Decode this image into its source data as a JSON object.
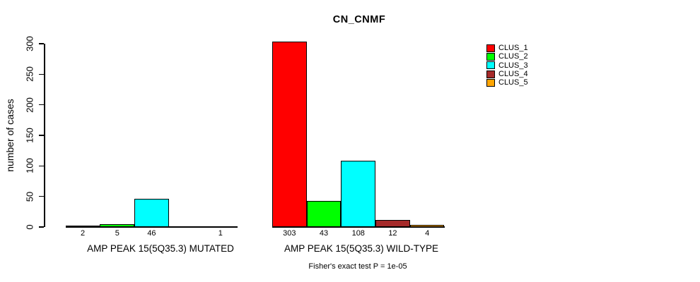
{
  "title": "CN_CNMF",
  "footnote": "Fisher's exact test P = 1e-05",
  "chart_data": {
    "type": "bar",
    "title": "CN_CNMF",
    "xlabel": "",
    "ylabel": "number of cases",
    "ylim": [
      0,
      300
    ],
    "yticks": [
      0,
      50,
      100,
      150,
      200,
      250,
      300
    ],
    "grid": false,
    "legend_position": "top-right",
    "categories": [
      "AMP PEAK 15(5Q35.3) MUTATED",
      "AMP PEAK 15(5Q35.3) WILD-TYPE"
    ],
    "series": [
      {
        "name": "CLUS_1",
        "color": "#FF0000",
        "values": [
          2,
          303
        ]
      },
      {
        "name": "CLUS_2",
        "color": "#00FF00",
        "values": [
          5,
          43
        ]
      },
      {
        "name": "CLUS_3",
        "color": "#00FFFF",
        "values": [
          46,
          108
        ]
      },
      {
        "name": "CLUS_4",
        "color": "#A52A2A",
        "values": [
          0,
          12
        ]
      },
      {
        "name": "CLUS_5",
        "color": "#FFA500",
        "values": [
          1,
          4
        ]
      }
    ],
    "value_labels": [
      [
        "2",
        "5",
        "46",
        "",
        "1"
      ],
      [
        "303",
        "43",
        "108",
        "12",
        "4"
      ]
    ],
    "annotation": "Fisher's exact test P = 1e-05"
  }
}
